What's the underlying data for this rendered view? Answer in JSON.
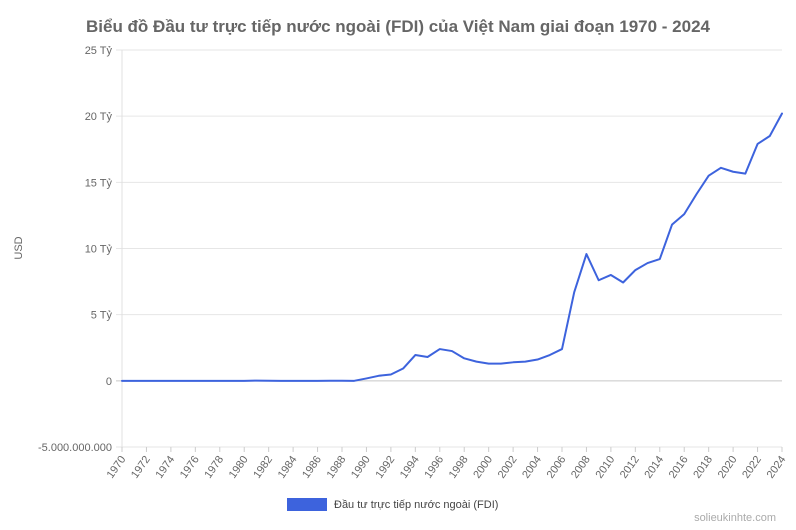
{
  "chart_data": {
    "type": "line",
    "title": "Biểu đồ Đầu tư trực tiếp nước ngoài (FDI) của Việt Nam giai đoạn 1970 - 2024",
    "ylabel": "USD",
    "xlabel": "",
    "ylim": [
      -5000000000,
      25000000000
    ],
    "y_ticks": [
      {
        "value": 25000000000,
        "label": "25 Tỷ"
      },
      {
        "value": 20000000000,
        "label": "20 Tỷ"
      },
      {
        "value": 15000000000,
        "label": "15 Tỷ"
      },
      {
        "value": 10000000000,
        "label": "10 Tỷ"
      },
      {
        "value": 5000000000,
        "label": "5 Tỷ"
      },
      {
        "value": 0,
        "label": "0"
      },
      {
        "value": -5000000000,
        "label": "-5.000.000.000"
      }
    ],
    "x_tick_labels": [
      "1970",
      "1972",
      "1974",
      "1976",
      "1978",
      "1980",
      "1982",
      "1984",
      "1986",
      "1988",
      "1990",
      "1992",
      "1994",
      "1996",
      "1998",
      "2000",
      "2002",
      "2004",
      "2006",
      "2008",
      "2010",
      "2012",
      "2014",
      "2016",
      "2018",
      "2020",
      "2022",
      "2024"
    ],
    "x": [
      1970,
      1971,
      1972,
      1973,
      1974,
      1975,
      1976,
      1977,
      1978,
      1979,
      1980,
      1981,
      1982,
      1983,
      1984,
      1985,
      1986,
      1987,
      1988,
      1989,
      1990,
      1991,
      1992,
      1993,
      1994,
      1995,
      1996,
      1997,
      1998,
      1999,
      2000,
      2001,
      2002,
      2003,
      2004,
      2005,
      2006,
      2007,
      2008,
      2009,
      2010,
      2011,
      2012,
      2013,
      2014,
      2015,
      2016,
      2017,
      2018,
      2019,
      2020,
      2021,
      2022,
      2023,
      2024
    ],
    "series": [
      {
        "name": "Đầu tư trực tiếp nước ngoài (FDI)",
        "color": "#3d63dd",
        "values": [
          0,
          0,
          0,
          0,
          0,
          0,
          0,
          0,
          0,
          0,
          0,
          20000000,
          10000000,
          0,
          0,
          0,
          0,
          10000000,
          10000000,
          0,
          180000000,
          380000000,
          480000000,
          930000000,
          1950000000,
          1800000000,
          2400000000,
          2250000000,
          1700000000,
          1450000000,
          1300000000,
          1300000000,
          1400000000,
          1450000000,
          1610000000,
          1950000000,
          2400000000,
          6700000000,
          9580000000,
          7600000000,
          8000000000,
          7430000000,
          8370000000,
          8900000000,
          9200000000,
          11800000000,
          12600000000,
          14100000000,
          15500000000,
          16100000000,
          15800000000,
          15660000000,
          17900000000,
          18500000000,
          20200000000
        ]
      }
    ],
    "legend_position": "bottom",
    "grid": true
  },
  "watermark": "solieukinhte.com"
}
